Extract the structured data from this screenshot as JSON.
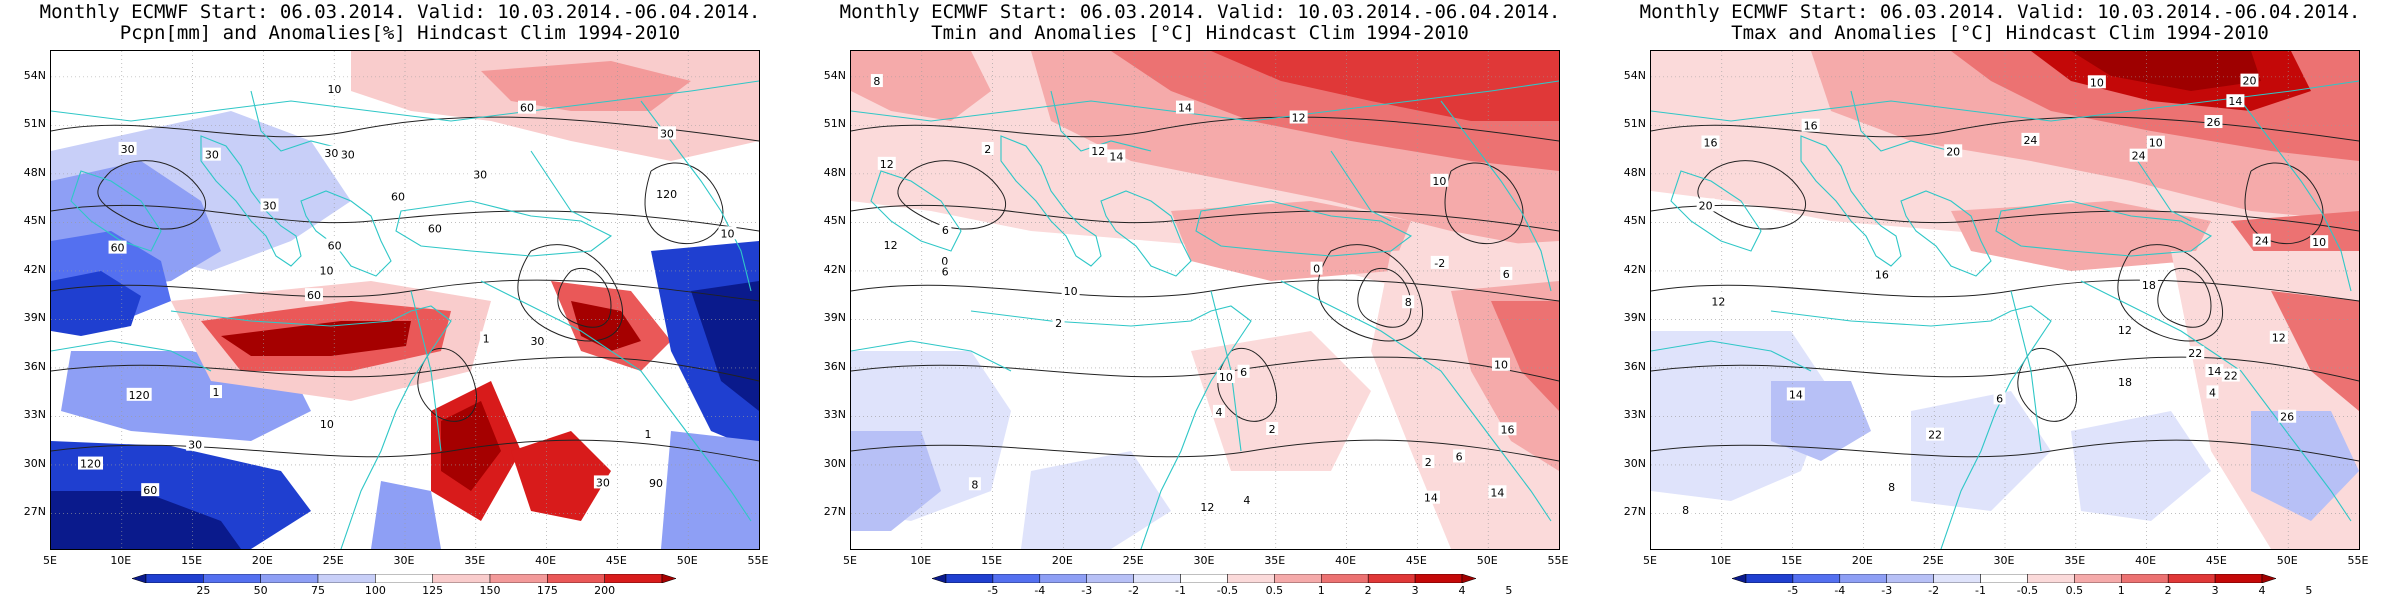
{
  "panels": [
    {
      "title1": "Monthly ECMWF Start: 06.03.2014. Valid: 10.03.2014.-06.04.2014.",
      "title2": "Pcpn[mm] and Anomalies[%] Hindcast Clim 1994-2010",
      "variable": "precipitation",
      "colorbar_ticks": [
        "25",
        "50",
        "75",
        "100",
        "125",
        "150",
        "175",
        "200"
      ],
      "colorbar_colors": [
        "#0a1a8c",
        "#1f3fd0",
        "#5470f0",
        "#8e9ff5",
        "#c8cff8",
        "#ffffff",
        "#f9cccc",
        "#f39a9a",
        "#ea5858",
        "#d81b1b",
        "#a50000"
      ],
      "contour_labels": [
        "90",
        "60",
        "30",
        "60",
        "30",
        "60",
        "30",
        "60",
        "120",
        "30",
        "120",
        "30",
        "30",
        "60",
        "30",
        "30",
        "10",
        "10",
        "1",
        "120",
        "10",
        "10",
        "60",
        "30",
        "60",
        "1",
        "30",
        "1"
      ]
    },
    {
      "title1": "Monthly ECMWF Start: 06.03.2014. Valid: 10.03.2014.-06.04.2014.",
      "title2": "Tmin and Anomalies [°C] Hindcast Clim 1994-2010",
      "variable": "tmin",
      "colorbar_ticks": [
        "-5",
        "-4",
        "-3",
        "-2",
        "-1",
        "-0.5",
        "0.5",
        "1",
        "2",
        "3",
        "4",
        "5"
      ],
      "colorbar_colors": [
        "#0a1a8c",
        "#1f3fd0",
        "#5470f0",
        "#8e9ff5",
        "#b7c0f6",
        "#dfe3fb",
        "#ffffff",
        "#fbdada",
        "#f5aaaa",
        "#ec7272",
        "#e03838",
        "#c40808",
        "#9e0000"
      ],
      "contour_labels": [
        "0",
        "2",
        "-2",
        "0",
        "2",
        "4",
        "6",
        "2",
        "8",
        "6",
        "2",
        "10",
        "12",
        "14",
        "10",
        "12",
        "6",
        "4",
        "12",
        "14",
        "16",
        "10",
        "12",
        "14",
        "14",
        "6",
        "8",
        "10",
        "8",
        "6",
        "12"
      ]
    },
    {
      "title1": "Monthly ECMWF Start: 06.03.2014. Valid: 10.03.2014.-06.04.2014.",
      "title2": "Tmax and Anomalies [°C] Hindcast Clim 1994-2010",
      "variable": "tmax",
      "colorbar_ticks": [
        "-5",
        "-4",
        "-3",
        "-2",
        "-1",
        "-0.5",
        "0.5",
        "1",
        "2",
        "3",
        "4",
        "5"
      ],
      "colorbar_colors": [
        "#0a1a8c",
        "#1f3fd0",
        "#5470f0",
        "#8e9ff5",
        "#b7c0f6",
        "#dfe3fb",
        "#ffffff",
        "#fbdada",
        "#f5aaaa",
        "#ec7272",
        "#e03838",
        "#c40808",
        "#9e0000"
      ],
      "contour_labels": [
        "8",
        "6",
        "4",
        "10",
        "12",
        "8",
        "10",
        "14",
        "16",
        "12",
        "14",
        "18",
        "20",
        "22",
        "24",
        "26",
        "14",
        "16",
        "20",
        "22",
        "24",
        "12",
        "10",
        "18",
        "20",
        "24",
        "26",
        "22",
        "16"
      ]
    }
  ],
  "axes": {
    "lat_labels": [
      "54N",
      "51N",
      "48N",
      "45N",
      "42N",
      "39N",
      "36N",
      "33N",
      "30N",
      "27N"
    ],
    "lon_labels": [
      "5E",
      "10E",
      "15E",
      "20E",
      "25E",
      "30E",
      "35E",
      "40E",
      "45E",
      "50E",
      "55E"
    ]
  }
}
